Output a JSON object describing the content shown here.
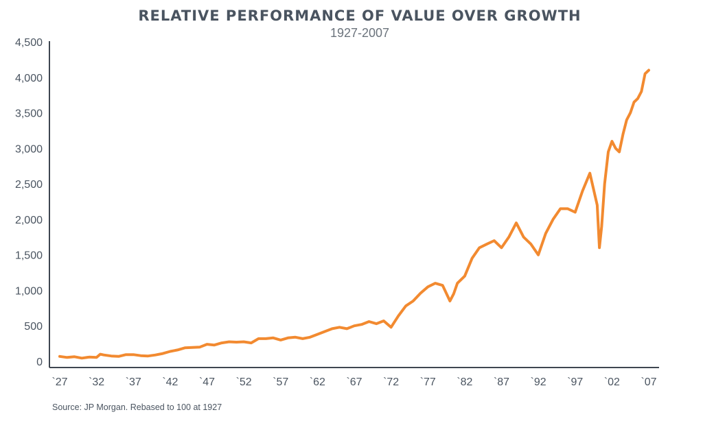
{
  "chart_data": {
    "type": "line",
    "title": "RELATIVE PERFORMANCE OF VALUE OVER GROWTH",
    "subtitle": "1927-2007",
    "xlabel": "",
    "ylabel": "",
    "source": "Source: JP Morgan. Rebased to 100 at 1927",
    "xlim": [
      1927,
      2007.5
    ],
    "ylim": [
      0,
      4500
    ],
    "yticks": [
      0,
      500,
      1000,
      1500,
      2000,
      2500,
      3000,
      3500,
      4000,
      4500
    ],
    "ytick_labels": [
      "0",
      "500",
      "1,000",
      "1,500",
      "2,000",
      "2,500",
      "3,000",
      "3,500",
      "4,000",
      "4,500"
    ],
    "xticks": [
      1927,
      1932,
      1937,
      1942,
      1947,
      1952,
      1957,
      1962,
      1967,
      1972,
      1977,
      1982,
      1987,
      1992,
      1997,
      2002,
      2007
    ],
    "xtick_labels": [
      "`27",
      "`32",
      "`37",
      "`42",
      "`47",
      "`52",
      "`57",
      "`62",
      "`67",
      "`72",
      "`77",
      "`82",
      "`87",
      "`92",
      "`97",
      "`02",
      "`07"
    ],
    "grid": false,
    "legend": "none",
    "colors": {
      "line": "#f28a30",
      "axis": "#3e4650",
      "text": "#4a5460"
    },
    "series": [
      {
        "x": [
          1927,
          1928,
          1929,
          1930,
          1931,
          1932,
          1932.5,
          1933,
          1934,
          1935,
          1936,
          1937,
          1938,
          1939,
          1940,
          1941,
          1942,
          1943,
          1944,
          1945,
          1946,
          1947,
          1948,
          1949,
          1950,
          1951,
          1952,
          1953,
          1954,
          1955,
          1956,
          1957,
          1958,
          1959,
          1960,
          1961,
          1962,
          1963,
          1964,
          1965,
          1966,
          1967,
          1968,
          1969,
          1970,
          1971,
          1972,
          1973,
          1974,
          1975,
          1976,
          1977,
          1978,
          1979,
          1980,
          1980.5,
          1981,
          1982,
          1983,
          1984,
          1985,
          1986,
          1987,
          1988,
          1989,
          1990,
          1991,
          1992,
          1993,
          1994,
          1995,
          1996,
          1997,
          1998,
          1999,
          2000,
          2000.3,
          2000.6,
          2001,
          2001.5,
          2002,
          2002.5,
          2003,
          2003.5,
          2004,
          2004.5,
          2005,
          2005.5,
          2006,
          2006.5,
          2007
        ],
        "y": [
          70,
          55,
          65,
          45,
          60,
          55,
          100,
          90,
          75,
          70,
          95,
          95,
          80,
          75,
          90,
          110,
          140,
          160,
          190,
          195,
          200,
          240,
          230,
          260,
          275,
          270,
          275,
          260,
          320,
          320,
          330,
          300,
          330,
          340,
          320,
          340,
          380,
          420,
          460,
          480,
          460,
          500,
          520,
          560,
          530,
          570,
          480,
          640,
          780,
          850,
          960,
          1050,
          1100,
          1070,
          850,
          950,
          1100,
          1200,
          1450,
          1600,
          1650,
          1700,
          1600,
          1750,
          1950,
          1750,
          1650,
          1500,
          1800,
          2000,
          2150,
          2150,
          2100,
          2400,
          2650,
          2200,
          1600,
          1900,
          2500,
          2950,
          3100,
          3000,
          2950,
          3200,
          3400,
          3500,
          3650,
          3700,
          3800,
          4050,
          4100
        ]
      }
    ]
  }
}
